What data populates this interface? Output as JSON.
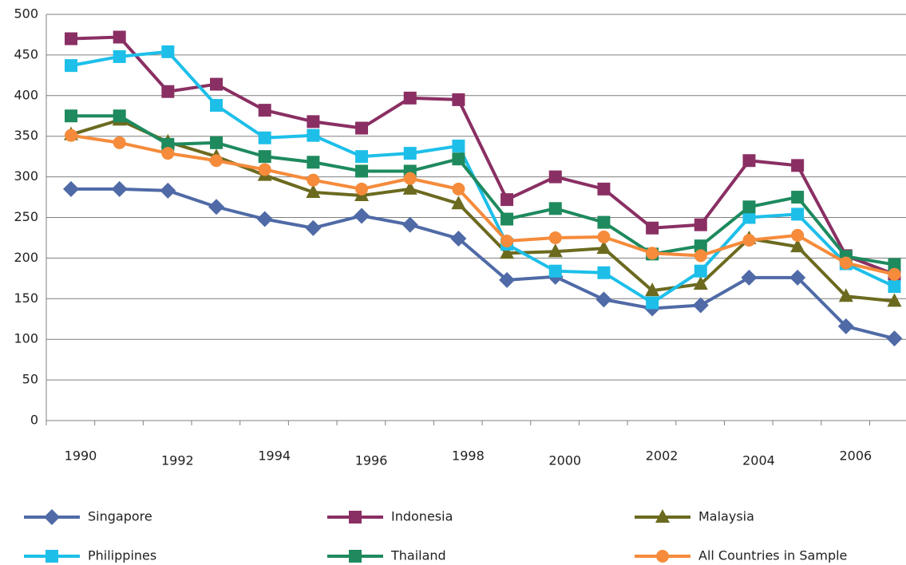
{
  "chart_data": {
    "type": "line",
    "categories": [
      "1990",
      null,
      "1992",
      null,
      "1994",
      null,
      "1996",
      null,
      "1998",
      null,
      "2000",
      null,
      "2002",
      null,
      "2004",
      null,
      "2006",
      null
    ],
    "series": [
      {
        "name": "Singapore",
        "color": "#4f6aa6",
        "marker": "diamond",
        "values": [
          285,
          285,
          283,
          263,
          248,
          237,
          252,
          241,
          224,
          173,
          177,
          149,
          138,
          142,
          176,
          176,
          116,
          101
        ]
      },
      {
        "name": "Indonesia",
        "color": "#8a2f63",
        "marker": "square",
        "values": [
          470,
          472,
          405,
          414,
          382,
          368,
          360,
          397,
          395,
          272,
          300,
          285,
          237,
          241,
          320,
          314,
          203,
          180
        ]
      },
      {
        "name": "Malaysia",
        "color": "#6b6a1f",
        "marker": "triangle",
        "values": [
          352,
          370,
          343,
          325,
          302,
          281,
          277,
          285,
          267,
          206,
          208,
          212,
          160,
          168,
          224,
          214,
          153,
          147
        ]
      },
      {
        "name": "Philippines",
        "color": "#1dbfe9",
        "marker": "square",
        "values": [
          437,
          448,
          454,
          388,
          348,
          351,
          325,
          329,
          338,
          217,
          184,
          182,
          145,
          184,
          250,
          254,
          193,
          165
        ]
      },
      {
        "name": "Thailand",
        "color": "#1e8a5e",
        "marker": "square",
        "values": [
          375,
          375,
          340,
          342,
          325,
          318,
          307,
          307,
          322,
          248,
          261,
          244,
          205,
          215,
          263,
          275,
          202,
          192
        ]
      },
      {
        "name": "All Countries in Sample",
        "color": "#f58b3b",
        "marker": "circle",
        "values": [
          351,
          342,
          329,
          320,
          309,
          296,
          285,
          298,
          285,
          221,
          225,
          226,
          206,
          203,
          222,
          228,
          194,
          180
        ]
      }
    ],
    "ylim": [
      0,
      500
    ],
    "yticks": [
      0,
      50,
      100,
      150,
      200,
      250,
      300,
      350,
      400,
      450,
      500
    ],
    "grid": true
  }
}
